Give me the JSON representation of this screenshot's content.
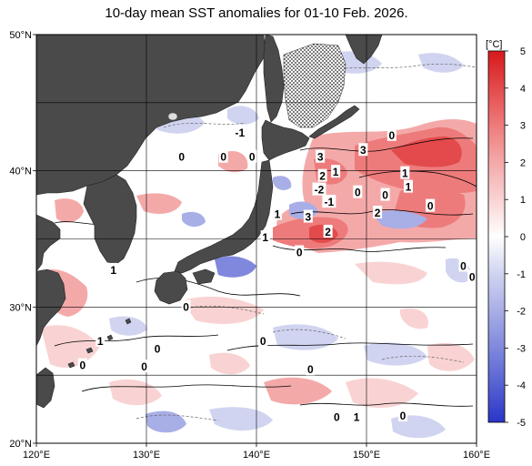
{
  "title": "10-day mean SST anomalies for 01-10 Feb. 2026.",
  "map": {
    "lon_range": [
      120,
      160
    ],
    "lat_range": [
      20,
      50
    ],
    "lon_ticks": [
      {
        "value": 120,
        "label": "120°E"
      },
      {
        "value": 130,
        "label": "130°E"
      },
      {
        "value": 140,
        "label": "140°E"
      },
      {
        "value": 150,
        "label": "150°E"
      },
      {
        "value": 160,
        "label": "160°E"
      }
    ],
    "lat_ticks": [
      {
        "value": 20,
        "label": "20°N"
      },
      {
        "value": 30,
        "label": "30°N"
      },
      {
        "value": 40,
        "label": "40°N"
      },
      {
        "value": 50,
        "label": "50°N"
      }
    ],
    "grid_lons": [
      130,
      140,
      150
    ],
    "grid_lats": [
      25,
      30,
      35,
      40,
      45
    ],
    "land_color": "#4a4a4a",
    "sea_ice_pattern": "dotted"
  },
  "colorbar": {
    "unit": "[°C]",
    "ticks": [
      {
        "value": 5,
        "label": "5"
      },
      {
        "value": 4,
        "label": "4"
      },
      {
        "value": 3,
        "label": "3"
      },
      {
        "value": 2,
        "label": "2"
      },
      {
        "value": 1,
        "label": "1"
      },
      {
        "value": 0,
        "label": "0"
      },
      {
        "value": -1,
        "label": "-1"
      },
      {
        "value": -2,
        "label": "-2"
      },
      {
        "value": -3,
        "label": "-3"
      },
      {
        "value": -4,
        "label": "-4"
      },
      {
        "value": -5,
        "label": "-5"
      }
    ],
    "colors": {
      "5": "#d7191c",
      "4": "#e34a4b",
      "3": "#ee7b7b",
      "2": "#f4a9a9",
      "1": "#f9d3d3",
      "0": "#ffffff",
      "-1": "#d0d4f0",
      "-2": "#a8aee6",
      "-3": "#7f88dc",
      "-4": "#5661d2",
      "-5": "#2a35c8"
    }
  },
  "contour_labels": [
    {
      "text": "-1",
      "lon": 138.5,
      "lat": 42.8
    },
    {
      "text": "0",
      "lon": 133.2,
      "lat": 41.0
    },
    {
      "text": "0",
      "lon": 137.0,
      "lat": 41.0
    },
    {
      "text": "0",
      "lon": 139.6,
      "lat": 41.0
    },
    {
      "text": "3",
      "lon": 145.8,
      "lat": 41.0
    },
    {
      "text": "3",
      "lon": 149.7,
      "lat": 41.5
    },
    {
      "text": "0",
      "lon": 152.3,
      "lat": 42.6
    },
    {
      "text": "2",
      "lon": 146.0,
      "lat": 39.6
    },
    {
      "text": "1",
      "lon": 147.2,
      "lat": 39.9
    },
    {
      "text": "1",
      "lon": 153.5,
      "lat": 39.8
    },
    {
      "text": "1",
      "lon": 153.8,
      "lat": 38.8
    },
    {
      "text": "-2",
      "lon": 145.7,
      "lat": 38.6
    },
    {
      "text": "-1",
      "lon": 146.6,
      "lat": 37.7
    },
    {
      "text": "0",
      "lon": 149.2,
      "lat": 38.4
    },
    {
      "text": "0",
      "lon": 151.7,
      "lat": 38.2
    },
    {
      "text": "0",
      "lon": 155.8,
      "lat": 37.4
    },
    {
      "text": "1",
      "lon": 141.9,
      "lat": 36.8
    },
    {
      "text": "3",
      "lon": 144.7,
      "lat": 36.6
    },
    {
      "text": "2",
      "lon": 151.0,
      "lat": 36.9
    },
    {
      "text": "2",
      "lon": 146.5,
      "lat": 35.5
    },
    {
      "text": "1",
      "lon": 140.8,
      "lat": 35.1
    },
    {
      "text": "0",
      "lon": 143.9,
      "lat": 34.0
    },
    {
      "text": "1",
      "lon": 127.0,
      "lat": 32.7
    },
    {
      "text": "0",
      "lon": 158.8,
      "lat": 33.0
    },
    {
      "text": "0",
      "lon": 159.6,
      "lat": 32.2
    },
    {
      "text": "0",
      "lon": 133.6,
      "lat": 30.0
    },
    {
      "text": "1",
      "lon": 125.8,
      "lat": 27.5
    },
    {
      "text": "0",
      "lon": 140.6,
      "lat": 27.5
    },
    {
      "text": "0",
      "lon": 131.0,
      "lat": 26.9
    },
    {
      "text": "0",
      "lon": 124.2,
      "lat": 25.7
    },
    {
      "text": "0",
      "lon": 129.8,
      "lat": 25.6
    },
    {
      "text": "0",
      "lon": 144.9,
      "lat": 25.4
    },
    {
      "text": "0",
      "lon": 147.3,
      "lat": 21.9
    },
    {
      "text": "1",
      "lon": 149.1,
      "lat": 21.9
    },
    {
      "text": "0",
      "lon": 153.3,
      "lat": 22.0
    }
  ]
}
